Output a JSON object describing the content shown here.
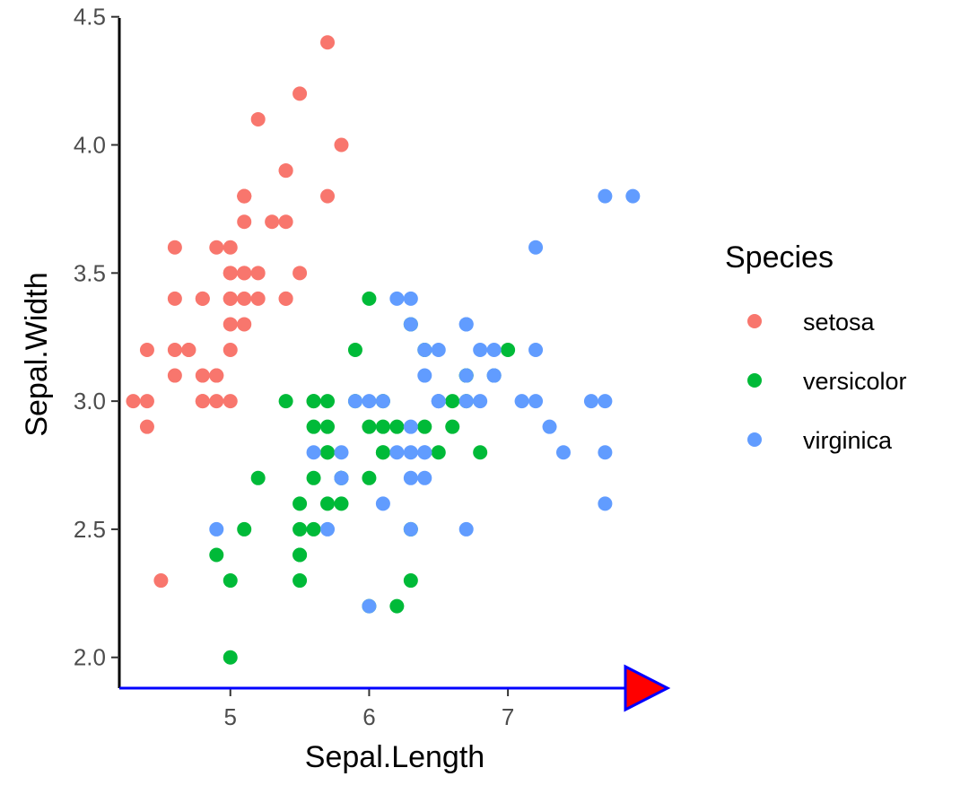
{
  "chart_data": {
    "type": "scatter",
    "title": "",
    "xlabel": "Sepal.Length",
    "ylabel": "Sepal.Width",
    "xlim": [
      4.2,
      8.15
    ],
    "ylim": [
      1.88,
      4.52
    ],
    "x_ticks": [
      5,
      6,
      7
    ],
    "y_ticks": [
      2.0,
      2.5,
      3.0,
      3.5,
      4.0,
      4.5
    ],
    "x_tick_labels": [
      "5",
      "6",
      "7"
    ],
    "y_tick_labels": [
      "2.0",
      "2.5",
      "3.0",
      "3.5",
      "4.0",
      "4.5"
    ],
    "grid": false,
    "legend": {
      "title": "Species",
      "placement": "right"
    },
    "x_axis_arrow": {
      "line_color": "#0000ff",
      "head_fill": "#ff0000"
    },
    "series": [
      {
        "name": "setosa",
        "color": "#F8766D",
        "points": [
          [
            5.1,
            3.5
          ],
          [
            4.9,
            3.0
          ],
          [
            4.7,
            3.2
          ],
          [
            4.6,
            3.1
          ],
          [
            5.0,
            3.6
          ],
          [
            5.4,
            3.9
          ],
          [
            4.6,
            3.4
          ],
          [
            5.0,
            3.4
          ],
          [
            4.4,
            2.9
          ],
          [
            4.9,
            3.1
          ],
          [
            5.4,
            3.7
          ],
          [
            4.8,
            3.4
          ],
          [
            4.8,
            3.0
          ],
          [
            4.3,
            3.0
          ],
          [
            5.8,
            4.0
          ],
          [
            5.7,
            4.4
          ],
          [
            5.4,
            3.9
          ],
          [
            5.1,
            3.5
          ],
          [
            5.7,
            3.8
          ],
          [
            5.1,
            3.8
          ],
          [
            5.4,
            3.4
          ],
          [
            5.1,
            3.7
          ],
          [
            4.6,
            3.6
          ],
          [
            5.1,
            3.3
          ],
          [
            4.8,
            3.4
          ],
          [
            5.0,
            3.0
          ],
          [
            5.0,
            3.4
          ],
          [
            5.2,
            3.5
          ],
          [
            5.2,
            3.4
          ],
          [
            4.7,
            3.2
          ],
          [
            4.8,
            3.1
          ],
          [
            5.4,
            3.4
          ],
          [
            5.2,
            4.1
          ],
          [
            5.5,
            4.2
          ],
          [
            4.9,
            3.1
          ],
          [
            5.0,
            3.2
          ],
          [
            5.5,
            3.5
          ],
          [
            4.9,
            3.6
          ],
          [
            4.4,
            3.0
          ],
          [
            5.1,
            3.4
          ],
          [
            5.0,
            3.5
          ],
          [
            4.5,
            2.3
          ],
          [
            4.4,
            3.2
          ],
          [
            5.0,
            3.5
          ],
          [
            5.1,
            3.8
          ],
          [
            4.8,
            3.0
          ],
          [
            5.1,
            3.8
          ],
          [
            4.6,
            3.2
          ],
          [
            5.3,
            3.7
          ],
          [
            5.0,
            3.3
          ]
        ]
      },
      {
        "name": "versicolor",
        "color": "#00BA38",
        "points": [
          [
            7.0,
            3.2
          ],
          [
            6.4,
            3.2
          ],
          [
            6.9,
            3.1
          ],
          [
            5.5,
            2.3
          ],
          [
            6.5,
            2.8
          ],
          [
            5.7,
            2.8
          ],
          [
            6.3,
            3.3
          ],
          [
            4.9,
            2.4
          ],
          [
            6.6,
            2.9
          ],
          [
            5.2,
            2.7
          ],
          [
            5.0,
            2.0
          ],
          [
            5.9,
            3.0
          ],
          [
            6.0,
            2.2
          ],
          [
            6.1,
            2.9
          ],
          [
            5.6,
            2.9
          ],
          [
            6.7,
            3.1
          ],
          [
            5.6,
            3.0
          ],
          [
            5.8,
            2.7
          ],
          [
            6.2,
            2.2
          ],
          [
            5.6,
            2.5
          ],
          [
            5.9,
            3.2
          ],
          [
            6.1,
            2.8
          ],
          [
            6.3,
            2.5
          ],
          [
            6.1,
            2.8
          ],
          [
            6.4,
            2.9
          ],
          [
            6.6,
            3.0
          ],
          [
            6.8,
            2.8
          ],
          [
            6.7,
            3.0
          ],
          [
            6.0,
            2.9
          ],
          [
            5.7,
            2.6
          ],
          [
            5.5,
            2.4
          ],
          [
            5.5,
            2.4
          ],
          [
            5.8,
            2.7
          ],
          [
            6.0,
            2.7
          ],
          [
            5.4,
            3.0
          ],
          [
            6.0,
            3.4
          ],
          [
            6.7,
            3.1
          ],
          [
            6.3,
            2.3
          ],
          [
            5.6,
            3.0
          ],
          [
            5.5,
            2.5
          ],
          [
            5.5,
            2.6
          ],
          [
            6.1,
            3.0
          ],
          [
            5.8,
            2.6
          ],
          [
            5.0,
            2.3
          ],
          [
            5.6,
            2.7
          ],
          [
            5.7,
            3.0
          ],
          [
            5.7,
            2.9
          ],
          [
            6.2,
            2.9
          ],
          [
            5.1,
            2.5
          ],
          [
            5.7,
            2.8
          ]
        ]
      },
      {
        "name": "virginica",
        "color": "#619CFF",
        "points": [
          [
            6.3,
            3.3
          ],
          [
            5.8,
            2.7
          ],
          [
            7.1,
            3.0
          ],
          [
            6.3,
            2.9
          ],
          [
            6.5,
            3.0
          ],
          [
            7.6,
            3.0
          ],
          [
            4.9,
            2.5
          ],
          [
            7.3,
            2.9
          ],
          [
            6.7,
            2.5
          ],
          [
            7.2,
            3.6
          ],
          [
            6.5,
            3.2
          ],
          [
            6.4,
            2.7
          ],
          [
            6.8,
            3.0
          ],
          [
            5.7,
            2.5
          ],
          [
            5.8,
            2.8
          ],
          [
            6.4,
            3.2
          ],
          [
            6.5,
            3.0
          ],
          [
            7.7,
            3.8
          ],
          [
            7.7,
            2.6
          ],
          [
            6.0,
            2.2
          ],
          [
            6.9,
            3.2
          ],
          [
            5.6,
            2.8
          ],
          [
            7.7,
            2.8
          ],
          [
            6.3,
            2.7
          ],
          [
            6.7,
            3.3
          ],
          [
            7.2,
            3.2
          ],
          [
            6.2,
            2.8
          ],
          [
            6.1,
            3.0
          ],
          [
            6.4,
            2.8
          ],
          [
            7.2,
            3.0
          ],
          [
            7.4,
            2.8
          ],
          [
            7.9,
            3.8
          ],
          [
            6.4,
            2.8
          ],
          [
            6.3,
            2.8
          ],
          [
            6.1,
            2.6
          ],
          [
            7.7,
            3.0
          ],
          [
            6.3,
            3.4
          ],
          [
            6.4,
            3.1
          ],
          [
            6.0,
            3.0
          ],
          [
            6.9,
            3.1
          ],
          [
            6.7,
            3.1
          ],
          [
            6.9,
            3.1
          ],
          [
            5.8,
            2.7
          ],
          [
            6.8,
            3.2
          ],
          [
            6.7,
            3.3
          ],
          [
            6.7,
            3.0
          ],
          [
            6.3,
            2.5
          ],
          [
            6.5,
            3.0
          ],
          [
            6.2,
            3.4
          ],
          [
            5.9,
            3.0
          ]
        ]
      }
    ]
  }
}
